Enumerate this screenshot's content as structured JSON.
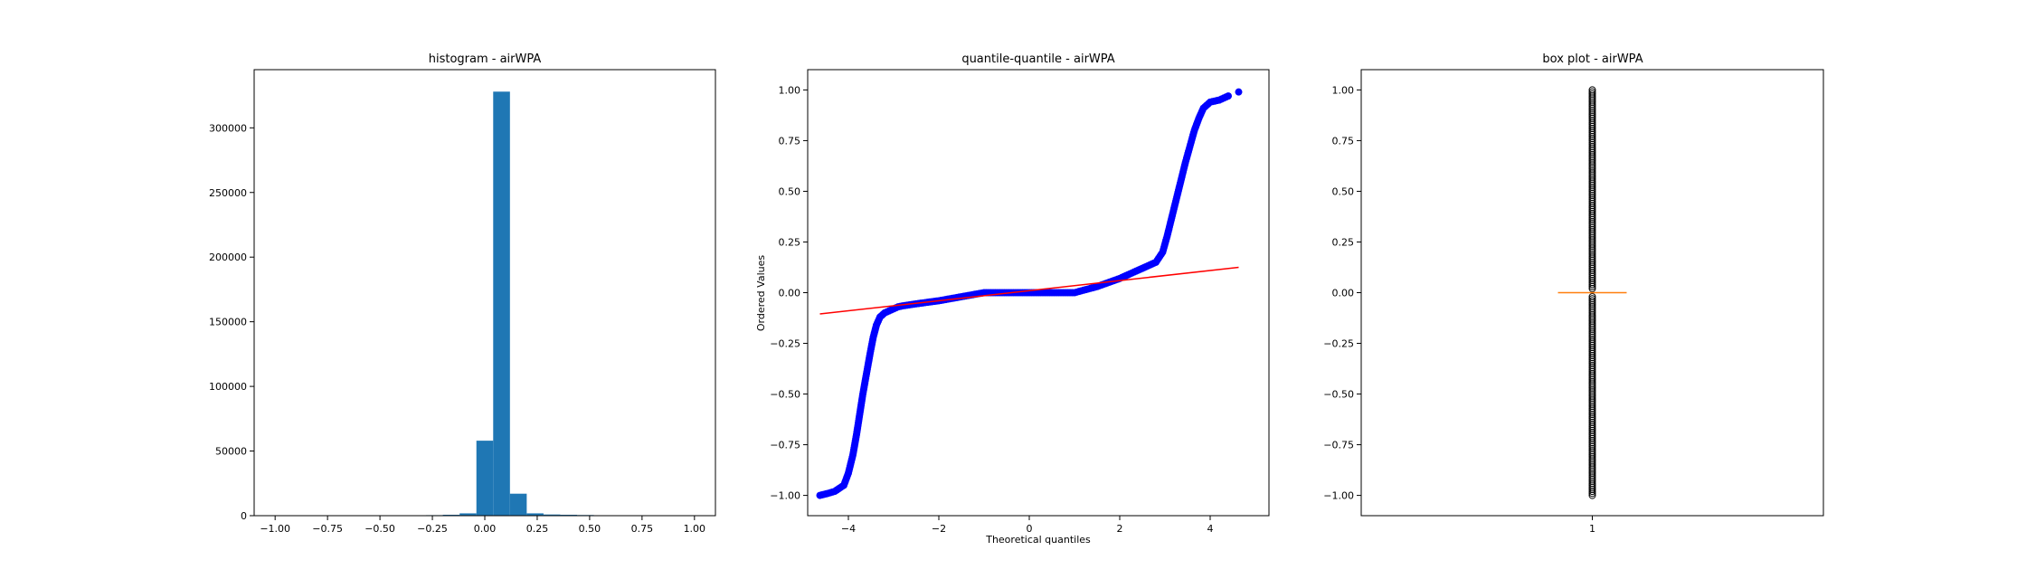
{
  "chart_data": [
    {
      "type": "bar",
      "title": "histogram - airWPA",
      "xlabel": "",
      "ylabel": "",
      "xlim": [
        -1.1,
        1.1
      ],
      "ylim": [
        0,
        345000
      ],
      "xticks": [
        "−1.00",
        "−0.75",
        "−0.50",
        "−0.25",
        "0.00",
        "0.25",
        "0.50",
        "0.75",
        "1.00"
      ],
      "yticks": [
        "0",
        "50000",
        "100000",
        "150000",
        "200000",
        "250000",
        "300000"
      ],
      "bin_edges": [
        -1.0,
        -0.92,
        -0.84,
        -0.76,
        -0.68,
        -0.6,
        -0.52,
        -0.44,
        -0.36,
        -0.28,
        -0.2,
        -0.12,
        -0.04,
        0.04,
        0.12,
        0.2,
        0.28,
        0.36,
        0.44,
        0.52,
        0.6,
        0.68,
        0.76,
        0.84,
        0.92,
        1.0
      ],
      "values": [
        10,
        10,
        20,
        20,
        30,
        40,
        60,
        120,
        250,
        400,
        700,
        1800,
        58000,
        328000,
        17000,
        1800,
        900,
        700,
        500,
        200,
        100,
        50,
        40,
        30,
        20
      ],
      "color": "#1f77b4"
    },
    {
      "type": "scatter",
      "title": "quantile-quantile - airWPA",
      "xlabel": "Theoretical quantiles",
      "ylabel": "Ordered Values",
      "xlim": [
        -4.9,
        5.3
      ],
      "ylim": [
        -1.1,
        1.1
      ],
      "xticks": [
        "−4",
        "−2",
        "0",
        "2",
        "4"
      ],
      "yticks": [
        "−1.00",
        "−0.75",
        "−0.50",
        "−0.25",
        "0.00",
        "0.25",
        "0.50",
        "0.75",
        "1.00"
      ],
      "series": [
        {
          "kind": "points",
          "color": "#0000ff",
          "x": [
            -4.63,
            -4.45,
            -4.3,
            -4.1,
            -4.0,
            -3.9,
            -3.82,
            -3.75,
            -3.68,
            -3.6,
            -3.52,
            -3.45,
            -3.38,
            -3.3,
            -3.2,
            -3.1,
            -3.0,
            -2.9,
            -2.8,
            -2.5,
            -2.0,
            -1.5,
            -1.0,
            -0.5,
            0.0,
            0.5,
            1.0,
            1.5,
            2.0,
            2.5,
            2.8,
            2.95,
            3.05,
            3.15,
            3.25,
            3.35,
            3.45,
            3.55,
            3.65,
            3.75,
            3.85,
            4.0,
            4.2,
            4.4,
            4.63
          ],
          "y": [
            -1.0,
            -0.99,
            -0.98,
            -0.95,
            -0.89,
            -0.8,
            -0.7,
            -0.6,
            -0.5,
            -0.4,
            -0.3,
            -0.22,
            -0.16,
            -0.12,
            -0.1,
            -0.09,
            -0.08,
            -0.07,
            -0.065,
            -0.055,
            -0.04,
            -0.02,
            0.0,
            0.0,
            0.0,
            0.0,
            0.0,
            0.03,
            0.07,
            0.12,
            0.15,
            0.2,
            0.28,
            0.37,
            0.46,
            0.55,
            0.64,
            0.72,
            0.8,
            0.86,
            0.91,
            0.94,
            0.95,
            0.97,
            0.99
          ]
        },
        {
          "kind": "line",
          "color": "#ff0000",
          "x": [
            -4.63,
            4.63
          ],
          "y": [
            -0.105,
            0.125
          ]
        }
      ]
    },
    {
      "type": "box",
      "title": "box plot - airWPA",
      "xlabel": "",
      "ylabel": "",
      "xlim": [
        0.5,
        1.5
      ],
      "ylim": [
        -1.1,
        1.1
      ],
      "xticks": [
        "1"
      ],
      "yticks": [
        "−1.00",
        "−0.75",
        "−0.50",
        "−0.25",
        "0.00",
        "0.25",
        "0.50",
        "0.75",
        "1.00"
      ],
      "median": 0.0,
      "q1": 0.0,
      "q3": 0.0,
      "median_color": "#ff7f0e",
      "outliers": [
        -1.0,
        -0.99,
        -0.98,
        -0.97,
        -0.96,
        -0.95,
        -0.93,
        -0.92,
        -0.9,
        -0.88,
        -0.87,
        -0.85,
        -0.83,
        -0.82,
        -0.8,
        -0.78,
        -0.76,
        -0.75,
        -0.73,
        -0.71,
        -0.7,
        -0.68,
        -0.66,
        -0.64,
        -0.63,
        -0.61,
        -0.59,
        -0.57,
        -0.55,
        -0.53,
        -0.51,
        -0.5,
        -0.48,
        -0.46,
        -0.44,
        -0.42,
        -0.4,
        -0.38,
        -0.37,
        -0.35,
        -0.33,
        -0.31,
        -0.29,
        -0.27,
        -0.25,
        -0.23,
        -0.21,
        -0.19,
        -0.17,
        -0.15,
        -0.13,
        -0.11,
        -0.09,
        -0.07,
        -0.05,
        -0.03,
        -0.02,
        0.02,
        0.03,
        0.05,
        0.07,
        0.09,
        0.11,
        0.13,
        0.15,
        0.17,
        0.19,
        0.21,
        0.23,
        0.25,
        0.27,
        0.29,
        0.31,
        0.33,
        0.35,
        0.37,
        0.39,
        0.41,
        0.43,
        0.45,
        0.47,
        0.49,
        0.51,
        0.53,
        0.55,
        0.57,
        0.59,
        0.61,
        0.63,
        0.65,
        0.67,
        0.69,
        0.71,
        0.73,
        0.75,
        0.77,
        0.79,
        0.81,
        0.83,
        0.85,
        0.87,
        0.89,
        0.91,
        0.93,
        0.95,
        0.97,
        0.99,
        1.0
      ]
    }
  ]
}
